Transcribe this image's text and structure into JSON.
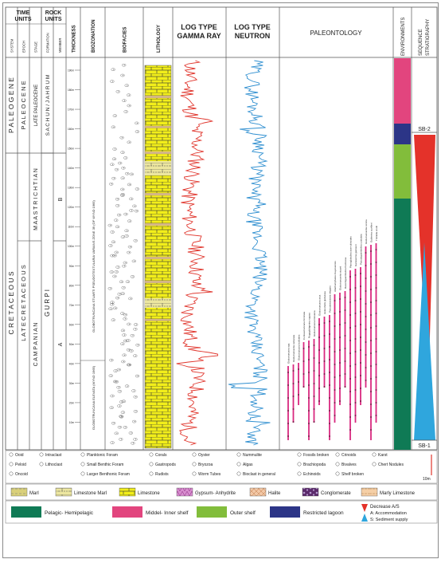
{
  "header": {
    "time_units": "TIME UNITS",
    "rock_units": "ROCK UNITS",
    "system": "SYSTEM",
    "epoch": "EPOCH",
    "stage": "STAGE",
    "formation": "FORMATION",
    "member": "MEMBER",
    "thickness": "THICKNESS",
    "biozonation": "BIOZONATION",
    "biofacies": "BIOFACIES",
    "lithology": "LITHOLOGY",
    "gamma_l1": "LOG TYPE",
    "gamma_l2": "GAMMA RAY",
    "neutron_l1": "LOG TYPE",
    "neutron_l2": "NEUTRON",
    "paleontology": "PALEONTOLOGY",
    "environments": "ENVIRONMENTS",
    "sequence": "SEQUENCE STRATIGRAPHY"
  },
  "column": {
    "system_paleogene": "P A L E O G E N E",
    "system_cretaceous": "C R E T A C E O U S",
    "epoch_paleocene": "P A L E O C E N E",
    "epoch_late_cretaceous": "L A T E   C R E T A C E O U S",
    "stage_late_paleocene": "LATE PALEOCENE",
    "stage_maastrichtian": "M A A S T R I C H T I A N",
    "stage_campanian": "C A M P A N I A N",
    "formation_sachun": "S A C H U N / J A H R U M",
    "formation_gurpi": "G U R P I",
    "member_b": "B",
    "member_a": "A",
    "biozone_upper": "GLOBOTRUNCANA STUARTI PSEUDOTEXTULARIA VARIANS ZONE 39 (OF WYND 1965)",
    "biozone_lower": "GLOBOTRUNCANA ELEVATA (WYND 1965)",
    "sb2": "SB-2",
    "sb1": "SB-1"
  },
  "thickness_ticks": [
    "10m",
    "20m",
    "30m",
    "40m",
    "50m",
    "60m",
    "70m",
    "80m",
    "90m",
    "100m",
    "110m",
    "120m",
    "130m",
    "140m",
    "150m",
    "160m",
    "170m",
    "180m",
    "190m"
  ],
  "taxa": [
    "Globotruncana spp.",
    "Globotruncanita calcarata",
    "Globotruncana bulloides",
    "Contusotruncana fornicata",
    "Rugoglobigerina rugosa",
    "Globotruncana linneiana",
    "Globotruncana arca",
    "Heterohelix globulosa",
    "Pseudotextularia elegans",
    "Abathomphalus mayaroensis",
    "Globotruncanita stuarti",
    "Racemiguembelina fructicosa",
    "Planoglobulina acervulinoides",
    "Gansserina gansseri",
    "Pseudoguembelina costulata",
    "Globotruncanita conica",
    "Gublerina cuvillieri",
    "Trinitella scotti"
  ],
  "legend": {
    "ooid": "Ooid",
    "peloid": "Peloid",
    "oncoid": "Oncoid",
    "intraclast": "Intraclast",
    "lithoclast": "Lithoclast",
    "planktonic": "Planktonic Foram",
    "small_benthic": "Small Benthic Foram",
    "larger_benthic": "Larger Benthonic Foram",
    "corals": "Corals",
    "gastropods": "Gastropods",
    "rudists": "Rudists",
    "oyster": "Oyster",
    "bryozoa": "Bryozoa",
    "worm_tubes": "Worm Tubes",
    "nummulite": "Nummulite",
    "algas": "Algas",
    "bioclast": "Bioclast in general",
    "fossils_broken": "Fossils broken",
    "brachiopoda": "Brachiopoda",
    "echinoids": "Echinoids",
    "crinoids": "Crinoids",
    "bivalves": "Bivalves",
    "shelf_broken": "Shelf broken",
    "karst": "Karst",
    "chert": "Chert Nodules",
    "scale": "10m",
    "marl": "Marl",
    "limestone_marl": "Limestone Marl",
    "limestone": "Limestone",
    "gypsum": "Gypsum- Anhydrite",
    "halite": "Halite",
    "conglomerate": "Conglomerate",
    "marly_limestone": "Marly Limestone",
    "env_pelagic": "Pelagic- Hemipelagic",
    "env_middel": "Middel- Inner shelf",
    "env_outer": "Outer shelf",
    "env_restricted": "Restricted lagoon",
    "decrease": "Decrease A/S",
    "accommodation": "A: Accommodation",
    "sediment": "S: Sediment supply"
  },
  "colors": {
    "pelagic": "#0f7a55",
    "middel": "#e2457e",
    "outer": "#82bd3b",
    "restricted": "#2c3587",
    "limestone": "#f2ee1a",
    "gamma": "#e0352c",
    "neutron": "#2f8fd0",
    "range": "#d8287f"
  }
}
